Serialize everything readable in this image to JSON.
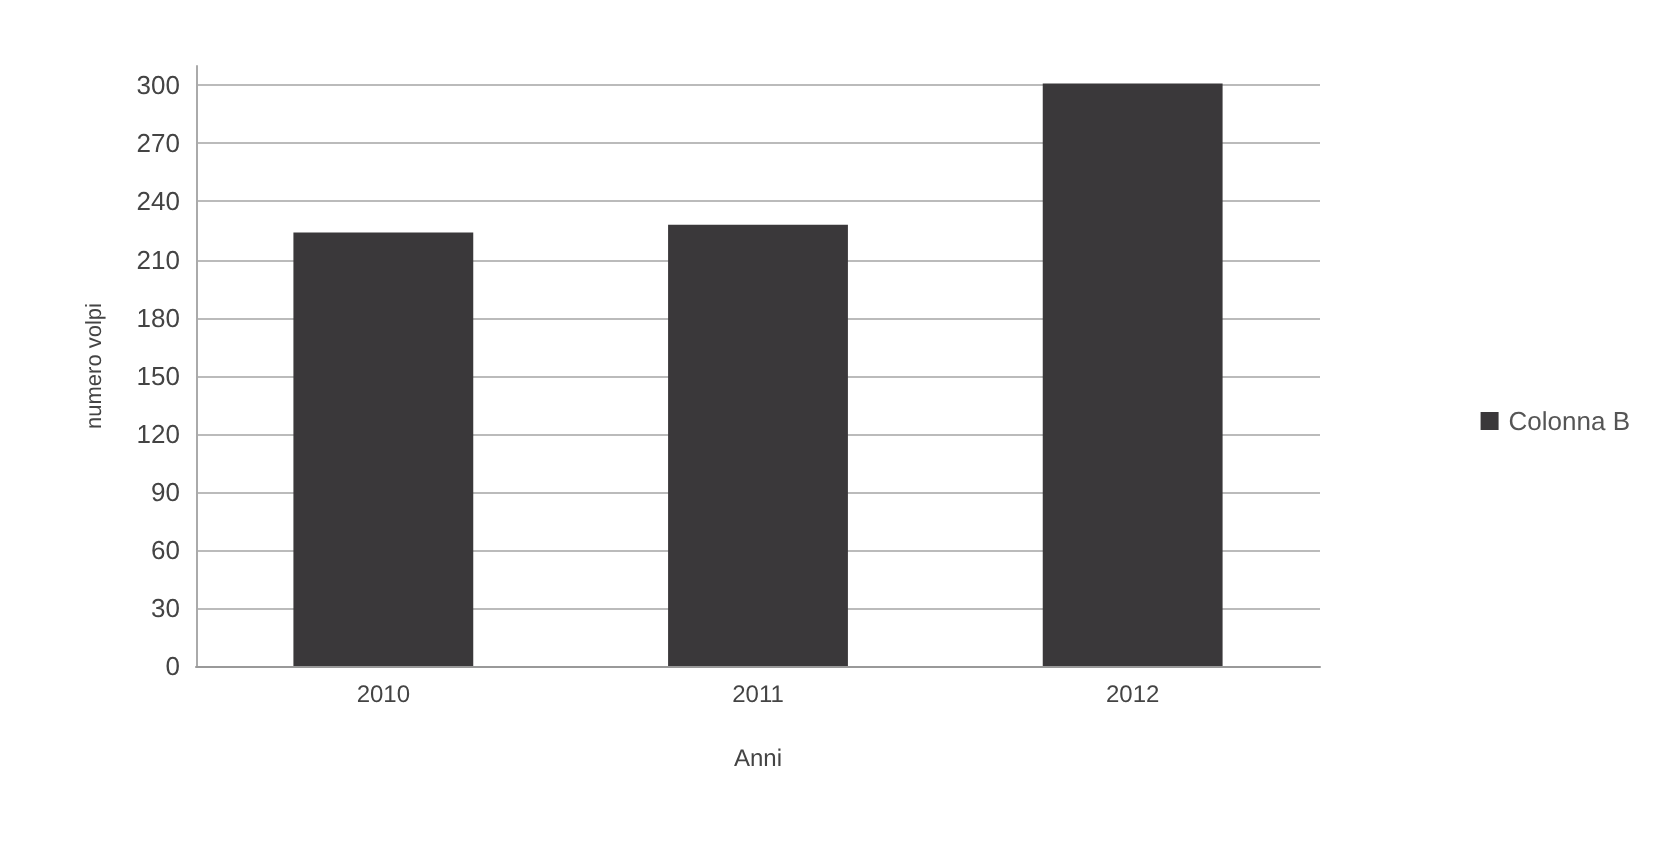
{
  "chart_data": {
    "type": "bar",
    "categories": [
      "2010",
      "2011",
      "2012"
    ],
    "series": [
      {
        "name": "Colonna B",
        "color": "#3a383a",
        "values": [
          224,
          228,
          301
        ]
      }
    ],
    "xlabel": "Anni",
    "ylabel": "numero volpi",
    "ylim": [
      0,
      310
    ],
    "yticks": [
      0,
      30,
      60,
      90,
      120,
      150,
      180,
      210,
      240,
      270,
      300
    ],
    "grid": "y",
    "legend": "right"
  }
}
